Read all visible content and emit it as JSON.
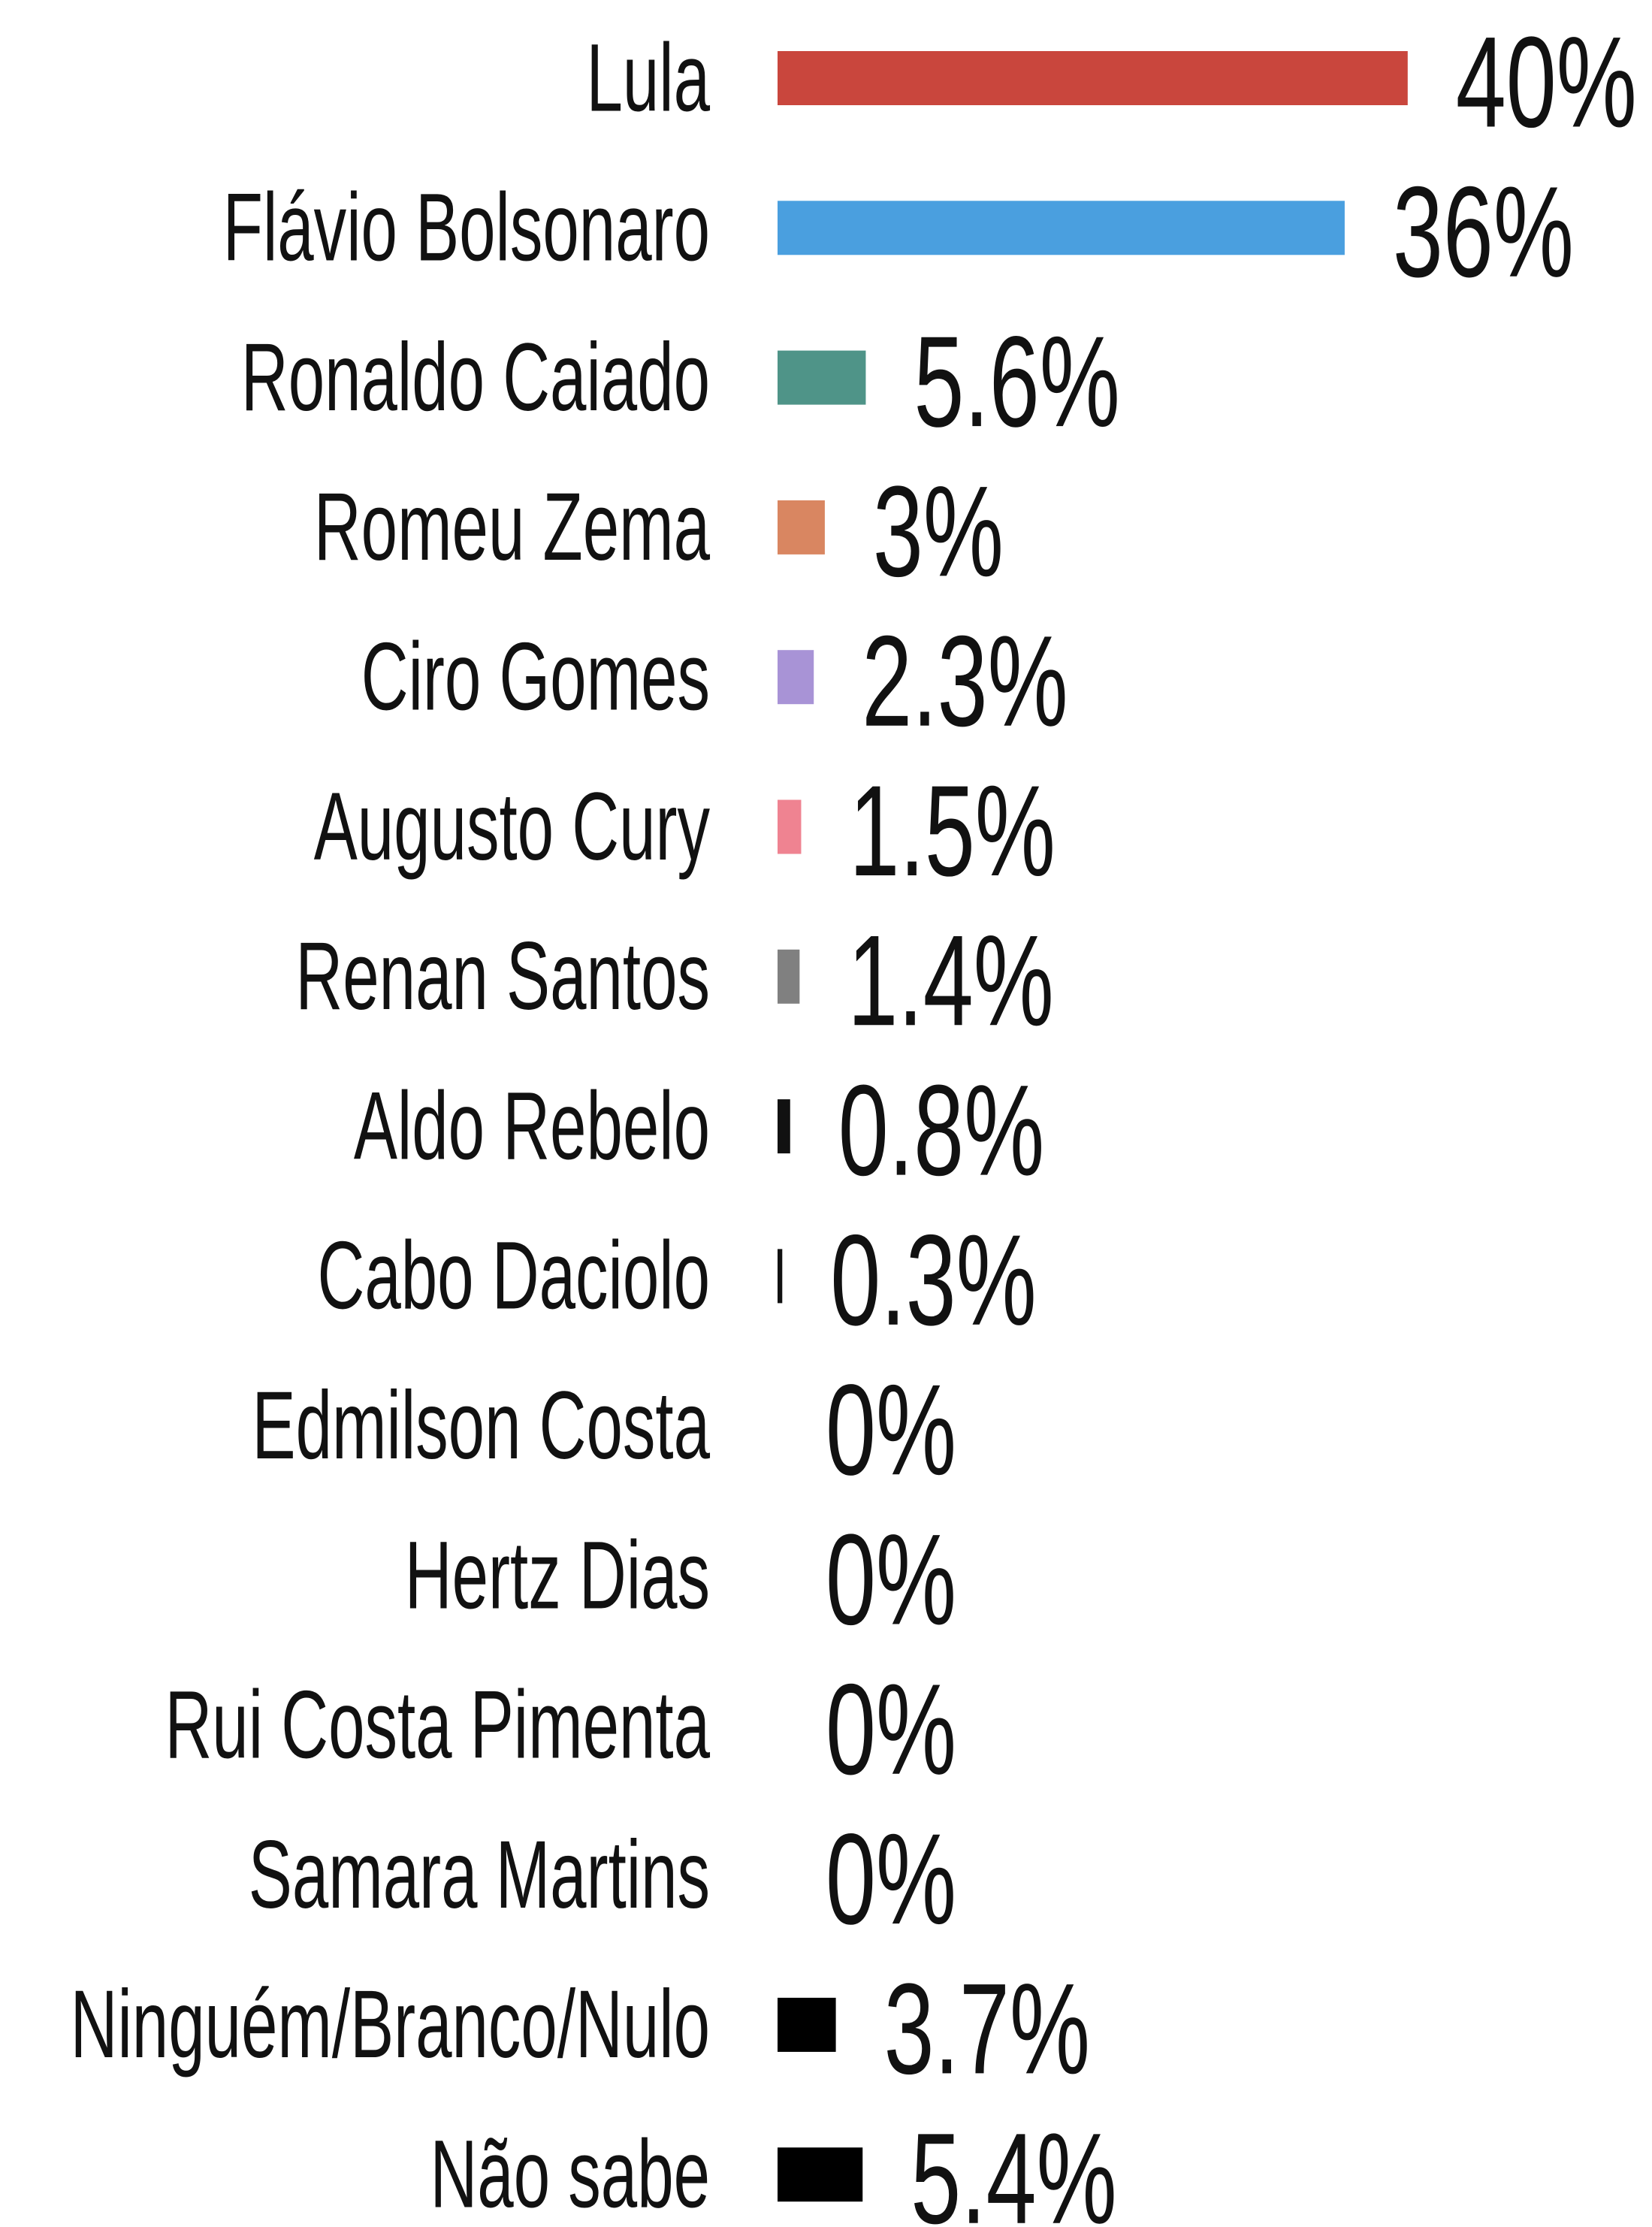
{
  "chart_data": {
    "type": "barh",
    "categories": [
      "Lula",
      "Flávio Bolsonaro",
      "Ronaldo Caiado",
      "Romeu Zema",
      "Ciro Gomes",
      "Augusto Cury",
      "Renan Santos",
      "Aldo Rebelo",
      "Cabo Daciolo",
      "Edmilson Costa",
      "Hertz Dias",
      "Rui Costa Pimenta",
      "Samara Martins",
      "Ninguém/Branco/Nulo",
      "Não sabe"
    ],
    "values": [
      40,
      36,
      5.6,
      3,
      2.3,
      1.5,
      1.4,
      0.8,
      0.3,
      0,
      0,
      0,
      0,
      3.7,
      5.4
    ],
    "value_labels": [
      "40%",
      "36%",
      "5.6%",
      "3%",
      "2.3%",
      "1.5%",
      "1.4%",
      "0.8%",
      "0.3%",
      "0%",
      "0%",
      "0%",
      "0%",
      "3.7%",
      "5.4%"
    ],
    "colors": [
      "#c9463d",
      "#4a9fdf",
      "#4f9488",
      "#d98661",
      "#a893d6",
      "#ef8391",
      "#808080",
      "#111111",
      "#111111",
      "#111111",
      "#111111",
      "#111111",
      "#111111",
      "#000000",
      "#000000"
    ]
  }
}
